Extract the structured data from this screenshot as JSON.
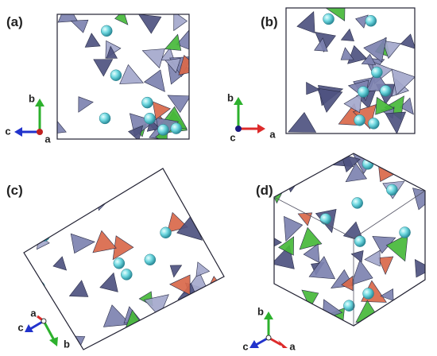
{
  "panels": [
    {
      "label": "(a)",
      "axis_labels": [
        "b",
        "c",
        "a"
      ]
    },
    {
      "label": "(b)",
      "axis_labels": [
        "b",
        "c",
        "a"
      ]
    },
    {
      "label": "(c)",
      "axis_labels": [
        "a",
        "c",
        "b"
      ]
    },
    {
      "label": "(d)",
      "axis_labels": [
        "b",
        "c",
        "a"
      ]
    }
  ]
}
